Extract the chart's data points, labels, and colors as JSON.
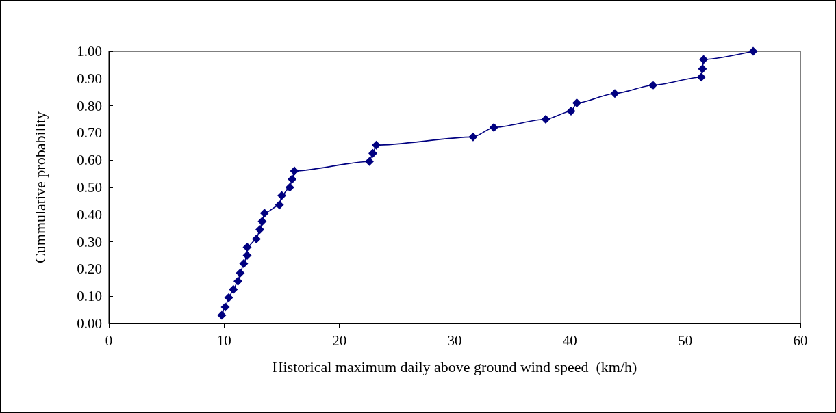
{
  "chart_data": {
    "type": "line",
    "xlabel": "Historical maximum daily above ground wind speed  (km/h)",
    "ylabel": "Cummulative probability",
    "x": [
      9.8,
      10.1,
      10.4,
      10.8,
      11.2,
      11.4,
      11.7,
      12.0,
      12.0,
      12.8,
      13.1,
      13.3,
      13.5,
      14.8,
      15.0,
      15.7,
      15.9,
      16.1,
      22.6,
      22.9,
      23.2,
      31.6,
      33.4,
      37.9,
      40.1,
      40.6,
      43.9,
      47.2,
      51.4,
      51.5,
      51.6,
      55.9
    ],
    "series": [
      {
        "color": "#000080",
        "values": [
          0.03,
          0.06,
          0.095,
          0.125,
          0.155,
          0.185,
          0.22,
          0.25,
          0.28,
          0.31,
          0.345,
          0.375,
          0.405,
          0.435,
          0.47,
          0.5,
          0.53,
          0.56,
          0.595,
          0.625,
          0.655,
          0.685,
          0.72,
          0.75,
          0.78,
          0.81,
          0.845,
          0.875,
          0.905,
          0.935,
          0.97,
          1.0
        ]
      }
    ],
    "xlim": [
      0,
      60
    ],
    "xticks": [
      0,
      10,
      20,
      30,
      40,
      50,
      60
    ],
    "ylim": [
      0,
      1
    ],
    "yticks": [
      {
        "value": 0,
        "label": "0.00"
      },
      {
        "value": 0.1,
        "label": "0.10"
      },
      {
        "value": 0.2,
        "label": "0.20"
      },
      {
        "value": 0.3,
        "label": "0.30"
      },
      {
        "value": 0.4,
        "label": "0.40"
      },
      {
        "value": 0.5,
        "label": "0.50"
      },
      {
        "value": 0.6,
        "label": "0.60"
      },
      {
        "value": 0.7,
        "label": "0.70"
      },
      {
        "value": 0.8,
        "label": "0.80"
      },
      {
        "value": 0.9,
        "label": "0.90"
      },
      {
        "value": 1,
        "label": "1.00"
      }
    ],
    "grid": false,
    "marker": "diamond",
    "line_style": "solid"
  }
}
